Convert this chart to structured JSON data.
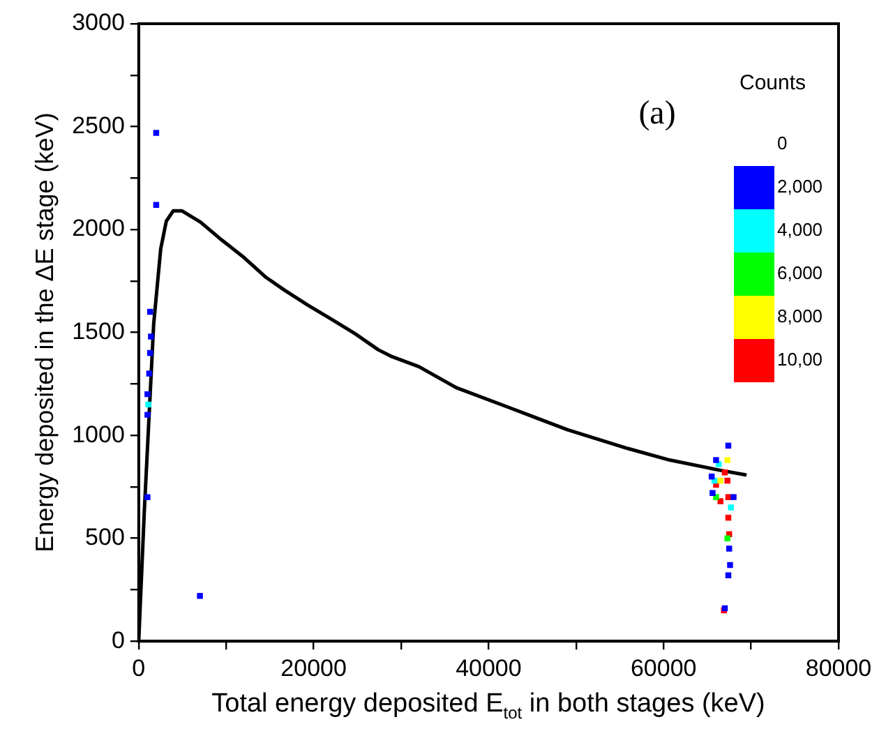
{
  "chart_data": {
    "type": "line",
    "xlabel": "Total energy deposited E$_{tot}$ in both stages (keV)",
    "ylabel": "Energy deposited in the ΔE stage (keV)",
    "legend_title": "Counts",
    "annotations": [
      "(a)",
      "0"
    ],
    "xlim": [
      0,
      80000
    ],
    "xticks": [
      0,
      {
        "value": 10000,
        "label": null
      },
      20000,
      {
        "value": 30000,
        "label": null
      },
      40000,
      {
        "value": 50000,
        "label": null
      },
      60000,
      {
        "value": 70000,
        "label": null
      },
      80000
    ],
    "ylim": [
      0,
      3000
    ],
    "yticks": [
      0,
      {
        "value": 250,
        "label": null
      },
      500,
      {
        "value": 750,
        "label": null
      },
      1000,
      {
        "value": 1250,
        "label": null
      },
      1500,
      {
        "value": 1750,
        "label": null
      },
      2000,
      {
        "value": 2250,
        "label": null
      },
      2500,
      {
        "value": 2750,
        "label": null
      },
      3000
    ],
    "grid": false,
    "legend": "top right",
    "series": [
      {
        "type": "scatter",
        "name": "2,000",
        "color": "#0000ff",
        "marker": "square",
        "x": [
          65500,
          65600,
          66000,
          67400,
          68000,
          67500,
          67600,
          67400,
          67000,
          1000,
          1000,
          1200,
          1300,
          1400,
          1300,
          1000,
          2000,
          2000,
          7000
        ],
        "values": [
          800,
          720,
          880,
          950,
          700,
          450,
          370,
          320,
          160,
          1100,
          1200,
          1300,
          1400,
          1480,
          1600,
          700,
          2470,
          2120,
          220
        ]
      },
      {
        "type": "scatter",
        "name": "4,000",
        "color": "#00ffff",
        "marker": "square",
        "x": [
          65800,
          66300,
          67700,
          1100
        ],
        "values": [
          780,
          860,
          650,
          1150
        ]
      },
      {
        "type": "scatter",
        "name": "6,000",
        "color": "#00ff00",
        "marker": "square",
        "x": [
          66000,
          67300
        ],
        "values": [
          700,
          500
        ]
      },
      {
        "type": "scatter",
        "name": "8,000",
        "color": "#ffff00",
        "marker": "square",
        "x": [
          66500,
          67300
        ],
        "values": [
          780,
          880
        ]
      },
      {
        "type": "scatter",
        "name": "10,00",
        "color": "#ff0000",
        "marker": "square",
        "x": [
          66000,
          66500,
          67000,
          67300,
          67400,
          67400,
          67500,
          66900
        ],
        "values": [
          760,
          680,
          820,
          780,
          700,
          600,
          520,
          150
        ]
      },
      {
        "color": "#000000",
        "marker": "none",
        "line_style": "solid",
        "x": [
          0,
          641,
          1711,
          2513,
          3155,
          3957,
          4920,
          7059,
          9465,
          11872,
          14545,
          16684,
          19358,
          22032,
          24706,
          27380,
          28984,
          32032,
          36280,
          42660,
          49030,
          55936,
          60717,
          66029,
          69482
        ],
        "values": [
          0,
          632,
          1541,
          1905,
          2041,
          2091,
          2091,
          2036,
          1950,
          1870,
          1768,
          1705,
          1632,
          1564,
          1495,
          1416,
          1382,
          1334,
          1232,
          1130,
          1027,
          936,
          880,
          834,
          807
        ]
      }
    ]
  }
}
